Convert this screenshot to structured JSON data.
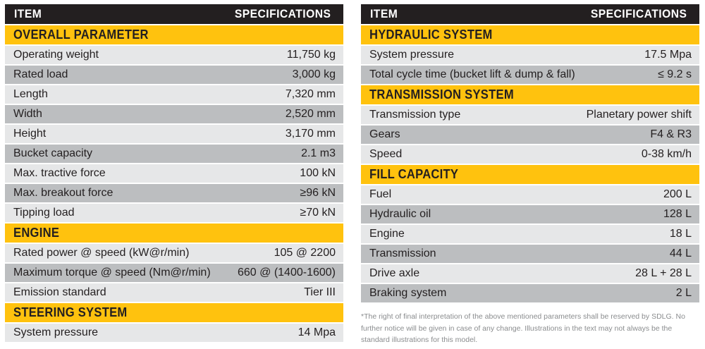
{
  "header": {
    "item_label": "ITEM",
    "spec_label": "SPECIFICATIONS"
  },
  "left": [
    {
      "title": "OVERALL PARAMETER",
      "rows": [
        {
          "item": "Operating weight",
          "spec": "11,750 kg"
        },
        {
          "item": "Rated load",
          "spec": "3,000 kg"
        },
        {
          "item": "Length",
          "spec": "7,320 mm"
        },
        {
          "item": "Width",
          "spec": "2,520 mm"
        },
        {
          "item": "Height",
          "spec": "3,170 mm"
        },
        {
          "item": "Bucket capacity",
          "spec": "2.1 m3"
        },
        {
          "item": "Max. tractive force",
          "spec": "100 kN"
        },
        {
          "item": "Max. breakout force",
          "spec": "≥96 kN"
        },
        {
          "item": "Tipping load",
          "spec": "≥70 kN"
        }
      ]
    },
    {
      "title": "ENGINE",
      "rows": [
        {
          "item": "Rated power @ speed (kW@r/min)",
          "spec": "105 @ 2200"
        },
        {
          "item": "Maximum torque @ speed (Nm@r/min)",
          "spec": "660 @ (1400-1600)"
        },
        {
          "item": "Emission standard",
          "spec": "Tier III"
        }
      ]
    },
    {
      "title": "STEERING SYSTEM",
      "rows": [
        {
          "item": "System pressure",
          "spec": "14 Mpa"
        }
      ]
    }
  ],
  "right": [
    {
      "title": "HYDRAULIC SYSTEM",
      "rows": [
        {
          "item": "System pressure",
          "spec": "17.5 Mpa"
        },
        {
          "item": "Total cycle time (bucket lift & dump & fall)",
          "spec": "≤ 9.2 s"
        }
      ]
    },
    {
      "title": "TRANSMISSION SYSTEM",
      "rows": [
        {
          "item": "Transmission type",
          "spec": "Planetary power shift"
        },
        {
          "item": "Gears",
          "spec": "F4 & R3"
        },
        {
          "item": "Speed",
          "spec": "0-38 km/h"
        }
      ]
    },
    {
      "title": "FILL CAPACITY",
      "rows": [
        {
          "item": "Fuel",
          "spec": "200 L"
        },
        {
          "item": "Hydraulic oil",
          "spec": "128 L"
        },
        {
          "item": "Engine",
          "spec": "18 L"
        },
        {
          "item": "Transmission",
          "spec": "44 L"
        },
        {
          "item": "Drive axle",
          "spec": "28 L + 28 L"
        },
        {
          "item": "Braking system",
          "spec": "2 L"
        }
      ]
    }
  ],
  "footnote": "*The right of final interpretation of the above mentioned parameters shall be reserved by SDLG. No further notice will be given in case of any change. Illustrations in the text may not always be the standard illustrations for this model.",
  "colors": {
    "header_bg": "#231f20",
    "section_bg": "#ffc20e",
    "row_light": "#e6e7e8",
    "row_dark": "#bcbec0"
  }
}
